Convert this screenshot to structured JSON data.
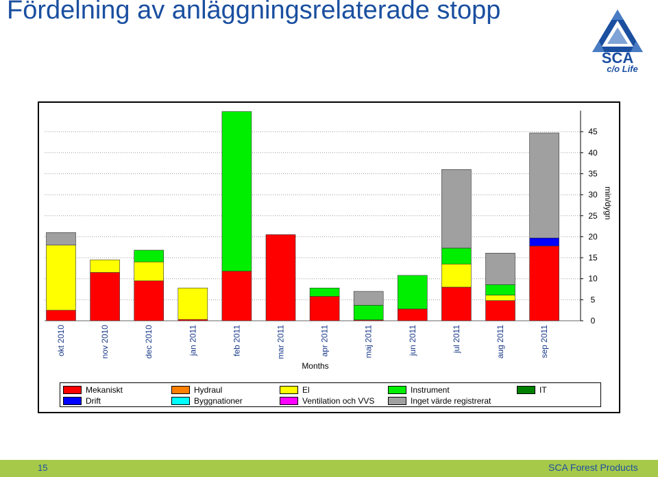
{
  "slide": {
    "title": "Fördelning av anläggningsrelaterade stopp",
    "page_number": "15",
    "footer": "SCA Forest Products"
  },
  "logo": {
    "text": "SCA",
    "tagline": "c/o Life",
    "icon": "sca-triangle-logo"
  },
  "colors": {
    "title": "#1a4fa0",
    "footer_bar": "#a7c94a"
  },
  "chart_data": {
    "type": "bar",
    "stacked": true,
    "xlabel": "Months",
    "ylabel": "min/dygn",
    "ylim": [
      0,
      50
    ],
    "yticks": [
      0,
      5,
      10,
      15,
      20,
      25,
      30,
      35,
      40,
      45
    ],
    "y_axis_position": "right",
    "grid": true,
    "legend_position": "bottom",
    "categories": [
      "okt 2010",
      "nov 2010",
      "dec 2010",
      "jan 2011",
      "feb 2011",
      "mar 2011",
      "apr 2011",
      "maj 2011",
      "jun 2011",
      "jul 2011",
      "aug 2011",
      "sep 2011"
    ],
    "series": [
      {
        "name": "Mekaniskt",
        "color": "#ff0000",
        "values": [
          2.5,
          11.5,
          9.5,
          0.3,
          11.8,
          20.5,
          5.8,
          0.2,
          2.8,
          8.0,
          4.8,
          17.8
        ]
      },
      {
        "name": "Hydraul",
        "color": "#ff7f00",
        "values": [
          0,
          0,
          0,
          0,
          0,
          0,
          0,
          0,
          0,
          0,
          0,
          0
        ]
      },
      {
        "name": "El",
        "color": "#ffff00",
        "values": [
          15.5,
          3.0,
          4.5,
          7.5,
          0,
          0,
          0,
          0,
          0,
          5.5,
          1.3,
          0
        ]
      },
      {
        "name": "Instrument",
        "color": "#00ee00",
        "values": [
          0,
          0,
          2.8,
          0,
          38.0,
          0,
          2.0,
          3.5,
          8.0,
          3.8,
          2.5,
          0
        ]
      },
      {
        "name": "IT",
        "color": "#008000",
        "values": [
          0,
          0,
          0,
          0,
          0,
          0,
          0,
          0,
          0,
          0,
          0,
          0
        ]
      },
      {
        "name": "Drift",
        "color": "#0000ff",
        "values": [
          0,
          0,
          0,
          0,
          0,
          0,
          0,
          0,
          0,
          0,
          0,
          1.9
        ]
      },
      {
        "name": "Byggnationer",
        "color": "#00ffff",
        "values": [
          0,
          0,
          0,
          0,
          0,
          0,
          0,
          0,
          0,
          0,
          0,
          0
        ]
      },
      {
        "name": "Ventilation och VVS",
        "color": "#ff00ff",
        "values": [
          0,
          0,
          0,
          0,
          0,
          0,
          0,
          0,
          0,
          0,
          0,
          0
        ]
      },
      {
        "name": "Inget värde registrerat",
        "color": "#a0a0a0",
        "values": [
          3.0,
          0,
          0,
          0,
          0,
          0,
          0,
          3.3,
          0,
          18.7,
          7.5,
          25.0
        ]
      }
    ]
  }
}
